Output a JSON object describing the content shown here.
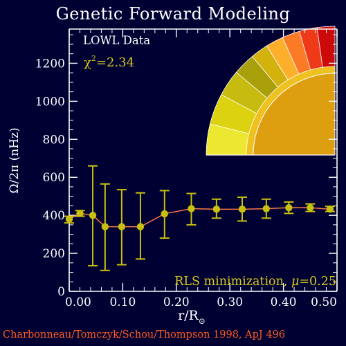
{
  "title": "Genetic Forward Modeling",
  "credit": "Charbonneau/Tomczyk/Schou/Thompson 1998, ApJ 496",
  "annotations": {
    "dataset": "LOWL Data",
    "chi_symbol": "χ",
    "chi_exp": "2",
    "chi_value": "=2.34",
    "method_prefix": "RLS minimization, ",
    "mu_symbol": "μ",
    "mu_value": "=0.25"
  },
  "axes": {
    "ylabel_base": "Ω/2π (nHz)",
    "xlabel_base": "r/R",
    "xlabel_sub": "⊙"
  },
  "colors": {
    "background": "#000033",
    "axes": "#ffffff",
    "data_points": "#c8c010",
    "model_line": "#ff7a4a",
    "credit": "#ff5a1e",
    "annotation_dataset": "#ffffff",
    "annotation_chi": "#d4c820",
    "annotation_rls": "#d4c820"
  },
  "chart_data": {
    "type": "scatter",
    "title": "Genetic Forward Modeling",
    "xlabel": "r/R⊙",
    "ylabel": "Ω/2π (nHz)",
    "xlim": [
      0.0,
      0.5
    ],
    "ylim": [
      0,
      1380
    ],
    "xticks": [
      0.0,
      0.1,
      0.2,
      0.3,
      0.4,
      0.5
    ],
    "xtick_labels": [
      "0.00",
      "0.10",
      "0.20",
      "0.30",
      "0.40",
      "0.50"
    ],
    "yticks": [
      0,
      200,
      400,
      600,
      800,
      1000,
      1200
    ],
    "ytick_labels": [
      "0",
      "200",
      "400",
      "600",
      "800",
      "1000",
      "1200"
    ],
    "series": [
      {
        "kind": "points",
        "x": [
          0.0,
          0.02,
          0.044,
          0.067,
          0.098,
          0.133,
          0.178,
          0.228,
          0.275,
          0.323,
          0.368,
          0.41,
          0.45,
          0.487
        ],
        "y": [
          380,
          410,
          400,
          340,
          340,
          340,
          408,
          435,
          432,
          432,
          435,
          440,
          440,
          432
        ],
        "y_low": [
          360,
          395,
          135,
          110,
          140,
          170,
          280,
          350,
          385,
          370,
          385,
          410,
          420,
          420
        ],
        "y_high": [
          395,
          425,
          660,
          565,
          535,
          518,
          530,
          515,
          485,
          495,
          485,
          470,
          460,
          447
        ]
      },
      {
        "kind": "line",
        "x": [
          0.0,
          0.02,
          0.044,
          0.067,
          0.098,
          0.133,
          0.178,
          0.228,
          0.275,
          0.323,
          0.368,
          0.41,
          0.45,
          0.487
        ],
        "y": [
          380,
          410,
          400,
          340,
          340,
          340,
          408,
          435,
          432,
          432,
          435,
          440,
          440,
          432
        ]
      }
    ],
    "inset": {
      "type": "rotation-profile-quadrant",
      "zone_colors": [
        "#cc0a0a",
        "#e61b13",
        "#ee3a18",
        "#f55a1e",
        "#fb7a26",
        "#fd952c",
        "#fdaf2c",
        "#eec020",
        "#d4b20e",
        "#dd9e10",
        "#a89f0a",
        "#c6bb0e",
        "#ddd210",
        "#ece832"
      ]
    },
    "grid": false,
    "legend": "none"
  }
}
